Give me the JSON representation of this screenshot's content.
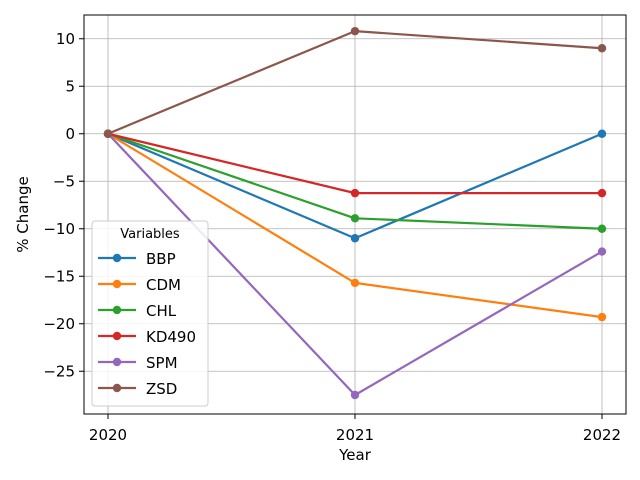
{
  "chart_data": {
    "type": "line",
    "title": "",
    "xlabel": "Year",
    "ylabel": "% Change",
    "categories": [
      "2020",
      "2021",
      "2022"
    ],
    "ylim": [
      -29.5,
      12.5
    ],
    "yticks": [
      -25,
      -20,
      -15,
      -10,
      -5,
      0,
      5,
      10
    ],
    "ytick_labels": [
      "−25",
      "−20",
      "−15",
      "−10",
      "−5",
      "0",
      "5",
      "10"
    ],
    "grid": true,
    "legend": {
      "title": "Variables",
      "placement": "lower-left"
    },
    "series": [
      {
        "name": "BBP",
        "color": "#1f77b4",
        "values": [
          0,
          -11.0,
          0.0
        ]
      },
      {
        "name": "CDM",
        "color": "#ff7f0e",
        "values": [
          0,
          -15.7,
          -19.3
        ]
      },
      {
        "name": "CHL",
        "color": "#2ca02c",
        "values": [
          0,
          -8.9,
          -10.0
        ]
      },
      {
        "name": "KD490",
        "color": "#d62728",
        "values": [
          0,
          -6.25,
          -6.25
        ]
      },
      {
        "name": "SPM",
        "color": "#9467bd",
        "values": [
          0,
          -27.5,
          -12.4
        ]
      },
      {
        "name": "ZSD",
        "color": "#8c564b",
        "values": [
          0,
          10.8,
          9.0
        ]
      }
    ]
  }
}
